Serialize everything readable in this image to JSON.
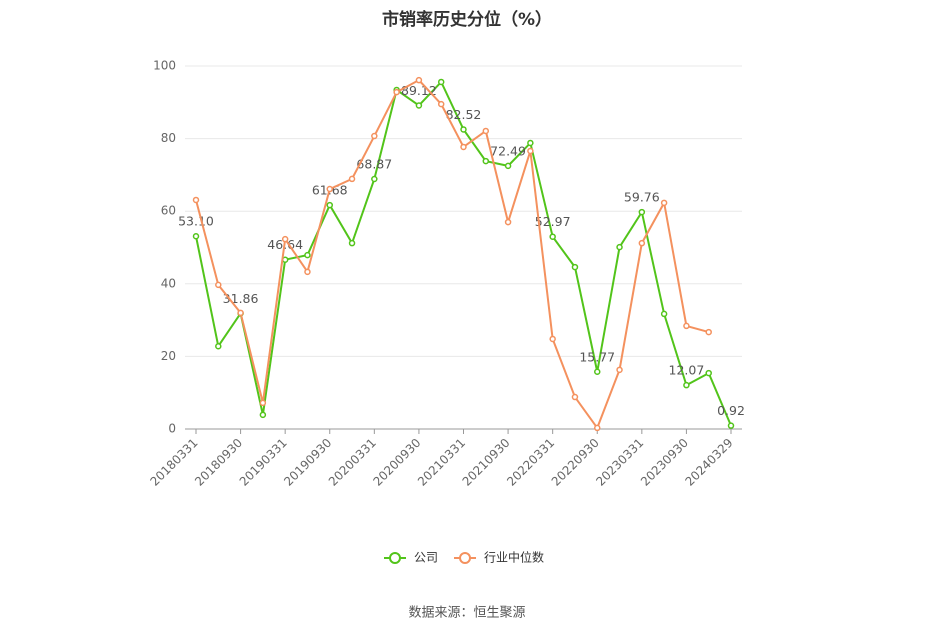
{
  "chart_data": {
    "type": "line",
    "title": "市销率历史分位（%）",
    "categories": [
      "20180331",
      null,
      "20180930",
      null,
      "20190331",
      null,
      "20190930",
      null,
      "20200331",
      null,
      "20200930",
      null,
      "20210331",
      null,
      "20210930",
      null,
      "20220331",
      null,
      "20220930",
      null,
      "20230331",
      null,
      "20230930",
      null,
      "20240329"
    ],
    "series": [
      {
        "name": "公司",
        "color": "#52c41a",
        "values": [
          53.1,
          22.8,
          31.86,
          3.9,
          46.64,
          47.9,
          61.68,
          51.2,
          68.87,
          93.4,
          89.12,
          95.6,
          82.52,
          73.8,
          72.49,
          78.8,
          52.97,
          44.6,
          15.77,
          50.1,
          59.76,
          31.7,
          12.07,
          15.4,
          0.92
        ],
        "value_labels": [
          "53.10",
          null,
          "31.86",
          null,
          "46.64",
          null,
          "61.68",
          null,
          "68.87",
          null,
          "89.12",
          null,
          "82.52",
          null,
          "72.49",
          null,
          "52.97",
          null,
          "15.77",
          null,
          "59.76",
          null,
          "12.07",
          null,
          "0.92"
        ]
      },
      {
        "name": "行业中位数",
        "color": "#f4915e",
        "values": [
          63.1,
          39.7,
          32.0,
          7.2,
          52.3,
          43.3,
          66.1,
          68.9,
          80.7,
          92.8,
          96.1,
          89.5,
          77.7,
          82.1,
          57.0,
          76.6,
          24.8,
          8.8,
          0.3,
          16.3,
          51.2,
          62.3,
          28.4,
          26.7,
          null
        ]
      }
    ],
    "ylim": [
      0,
      100
    ],
    "yticks": [
      0,
      20,
      40,
      60,
      80,
      100
    ],
    "grid": true,
    "legend": "bottom",
    "source": "数据来源：恒生聚源"
  }
}
